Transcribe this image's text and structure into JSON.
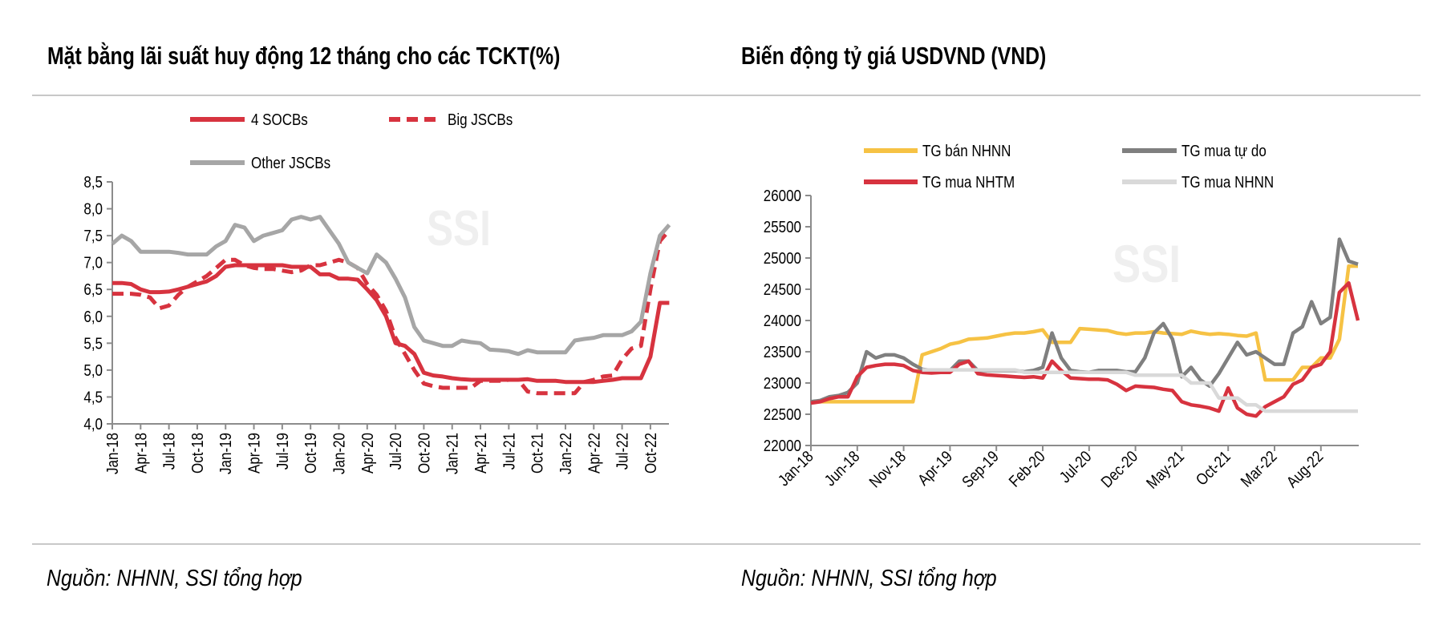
{
  "chart_data": [
    {
      "type": "line",
      "title": "Mặt bằng lãi suất huy động 12 tháng cho các TCKT(%)",
      "source": "Nguồn: NHNN, SSI tổng hợp",
      "watermark": "SSI",
      "xlabel": "",
      "ylabel": "",
      "ylim": [
        4.0,
        8.5
      ],
      "yticks": [
        "4,0",
        "4,5",
        "5,0",
        "5,5",
        "6,0",
        "6,5",
        "7,0",
        "7,5",
        "8,0",
        "8,5"
      ],
      "xtick_labels": [
        "Jan-18",
        "Apr-18",
        "Jul-18",
        "Oct-18",
        "Jan-19",
        "Apr-19",
        "Jul-19",
        "Oct-19",
        "Jan-20",
        "Apr-20",
        "Jul-20",
        "Oct-20",
        "Jan-21",
        "Apr-21",
        "Jul-21",
        "Oct-21",
        "Jan-22",
        "Apr-22",
        "Jul-22",
        "Oct-22"
      ],
      "x_period": "monthly Jan-18 to Dec-22",
      "grid": false,
      "legend_position": "top",
      "series": [
        {
          "name": "4 SOCBs",
          "color": "#d7333f",
          "style": "solid",
          "values": [
            6.62,
            6.62,
            6.6,
            6.5,
            6.45,
            6.45,
            6.46,
            6.5,
            6.55,
            6.6,
            6.65,
            6.75,
            6.92,
            6.95,
            6.95,
            6.95,
            6.95,
            6.95,
            6.95,
            6.92,
            6.92,
            6.92,
            6.78,
            6.78,
            6.7,
            6.7,
            6.68,
            6.5,
            6.3,
            6.0,
            5.5,
            5.45,
            5.3,
            4.95,
            4.9,
            4.88,
            4.85,
            4.83,
            4.82,
            4.82,
            4.82,
            4.82,
            4.82,
            4.82,
            4.83,
            4.8,
            4.8,
            4.8,
            4.78,
            4.78,
            4.78,
            4.78,
            4.8,
            4.82,
            4.85,
            4.85,
            4.85,
            5.25,
            6.25,
            6.25
          ]
        },
        {
          "name": "Big JSCBs",
          "color": "#d7333f",
          "style": "dashed",
          "values": [
            6.42,
            6.42,
            6.42,
            6.4,
            6.35,
            6.15,
            6.2,
            6.4,
            6.55,
            6.65,
            6.75,
            6.9,
            7.05,
            7.05,
            6.95,
            6.9,
            6.88,
            6.88,
            6.85,
            6.82,
            6.85,
            6.95,
            6.95,
            7.0,
            7.05,
            7.0,
            6.9,
            6.6,
            6.4,
            6.1,
            5.6,
            5.3,
            5.0,
            4.75,
            4.7,
            4.67,
            4.67,
            4.67,
            4.67,
            4.8,
            4.8,
            4.8,
            4.82,
            4.82,
            4.6,
            4.57,
            4.57,
            4.57,
            4.57,
            4.57,
            4.78,
            4.82,
            4.88,
            4.9,
            5.2,
            5.4,
            5.45,
            6.5,
            7.4,
            7.6
          ]
        },
        {
          "name": "Other JSCBs",
          "color": "#a6a6a6",
          "style": "solid",
          "values": [
            7.35,
            7.5,
            7.4,
            7.2,
            7.2,
            7.2,
            7.2,
            7.18,
            7.15,
            7.15,
            7.15,
            7.3,
            7.4,
            7.7,
            7.65,
            7.4,
            7.5,
            7.55,
            7.6,
            7.8,
            7.85,
            7.8,
            7.85,
            7.6,
            7.35,
            7.0,
            6.9,
            6.8,
            7.15,
            7.0,
            6.7,
            6.35,
            5.8,
            5.55,
            5.5,
            5.45,
            5.45,
            5.55,
            5.52,
            5.5,
            5.38,
            5.37,
            5.35,
            5.3,
            5.37,
            5.33,
            5.33,
            5.33,
            5.33,
            5.55,
            5.58,
            5.6,
            5.65,
            5.65,
            5.65,
            5.72,
            5.9,
            6.8,
            7.5,
            7.7
          ]
        }
      ]
    },
    {
      "type": "line",
      "title": "Biến động tỷ giá USDVND (VND)",
      "source": "Nguồn: NHNN, SSI tổng hợp",
      "watermark": "SSI",
      "xlabel": "",
      "ylabel": "",
      "ylim": [
        22000,
        26000
      ],
      "yticks": [
        "22000",
        "22500",
        "23000",
        "23500",
        "24000",
        "24500",
        "25000",
        "25500",
        "26000"
      ],
      "xtick_labels": [
        "Jan-18",
        "Jun-18",
        "Nov-18",
        "Apr-19",
        "Sep-19",
        "Feb-20",
        "Jul-20",
        "Dec-20",
        "May-21",
        "Oct-21",
        "Mar-22",
        "Aug-22"
      ],
      "x_period": "monthly Jan-18 to Dec-22",
      "grid": false,
      "legend_position": "top",
      "series": [
        {
          "name": "TG bán NHNN",
          "color": "#f6c244",
          "style": "solid",
          "values": [
            22700,
            22700,
            22700,
            22700,
            22700,
            22700,
            22700,
            22700,
            22700,
            22700,
            22700,
            22700,
            23450,
            23500,
            23550,
            23620,
            23650,
            23700,
            23710,
            23720,
            23750,
            23780,
            23800,
            23800,
            23820,
            23850,
            23650,
            23650,
            23650,
            23870,
            23860,
            23850,
            23840,
            23800,
            23780,
            23800,
            23800,
            23820,
            23800,
            23790,
            23780,
            23830,
            23800,
            23780,
            23790,
            23780,
            23760,
            23750,
            23800,
            23050,
            23050,
            23050,
            23050,
            23250,
            23250,
            23400,
            23400,
            23700,
            24870,
            24870
          ]
        },
        {
          "name": "TG mua tự do",
          "color": "#7f7f7f",
          "style": "solid",
          "values": [
            22700,
            22720,
            22780,
            22800,
            22850,
            23000,
            23500,
            23400,
            23450,
            23450,
            23400,
            23300,
            23220,
            23200,
            23200,
            23200,
            23350,
            23350,
            23200,
            23200,
            23200,
            23200,
            23200,
            23180,
            23200,
            23250,
            23800,
            23400,
            23200,
            23180,
            23170,
            23200,
            23200,
            23200,
            23180,
            23180,
            23400,
            23800,
            23950,
            23700,
            23100,
            23250,
            23050,
            22950,
            23150,
            23400,
            23650,
            23450,
            23500,
            23400,
            23300,
            23300,
            23800,
            23900,
            24300,
            23950,
            24050,
            25300,
            24950,
            24900
          ]
        },
        {
          "name": "TG mua NHTM",
          "color": "#d7333f",
          "style": "solid",
          "values": [
            22680,
            22700,
            22750,
            22780,
            22780,
            23100,
            23250,
            23280,
            23300,
            23300,
            23280,
            23200,
            23170,
            23160,
            23170,
            23170,
            23300,
            23350,
            23150,
            23130,
            23120,
            23110,
            23100,
            23090,
            23100,
            23080,
            23350,
            23200,
            23080,
            23070,
            23060,
            23060,
            23050,
            22980,
            22880,
            22950,
            22940,
            22930,
            22900,
            22880,
            22700,
            22650,
            22630,
            22600,
            22550,
            22920,
            22600,
            22500,
            22470,
            22620,
            22700,
            22780,
            22980,
            23050,
            23250,
            23300,
            23500,
            24450,
            24600,
            24000
          ]
        },
        {
          "name": "TG mua NHNN",
          "color": "#d9d9d9",
          "style": "solid",
          "values": [
            null,
            null,
            null,
            null,
            null,
            null,
            null,
            null,
            null,
            null,
            null,
            null,
            23210,
            23210,
            23210,
            23210,
            23210,
            23210,
            23210,
            23210,
            23210,
            23210,
            23210,
            23170,
            23170,
            23170,
            23170,
            23170,
            23170,
            23170,
            23170,
            23170,
            23170,
            23170,
            23170,
            23125,
            23125,
            23125,
            23125,
            23125,
            23125,
            23000,
            23000,
            23000,
            22760,
            22760,
            22760,
            22650,
            22650,
            22550,
            22550,
            22550,
            22550,
            22550,
            22550,
            22550,
            22550,
            22550,
            22550,
            22550
          ]
        }
      ]
    }
  ]
}
